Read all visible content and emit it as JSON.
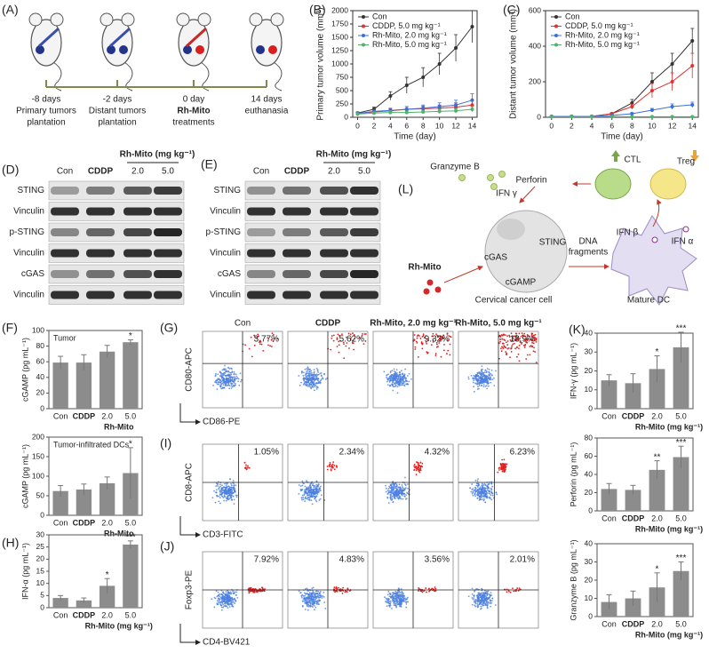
{
  "panel_labels": [
    "(A)",
    "(B)",
    "(C)",
    "(D)",
    "(E)",
    "(L)",
    "(F)",
    "(G)",
    "(K)",
    "(I)",
    "(H)",
    "(J)"
  ],
  "timeline": [
    {
      "time": "-8 days",
      "event": [
        "Primary tumors",
        "plantation"
      ]
    },
    {
      "time": "-2 days",
      "event": [
        "Distant tumors",
        "plantation"
      ]
    },
    {
      "time": "0 day",
      "event": [
        "Rh-Mito",
        "treatments"
      ]
    },
    {
      "time": "14 days",
      "event": [
        "euthanasia"
      ]
    }
  ],
  "blots": {
    "columns": [
      "Con",
      "CDDP",
      "2.0",
      "5.0"
    ],
    "dose_header": "Rh-Mito (mg kg⁻¹)",
    "rows": [
      "STING",
      "Vinculin",
      "p-STING",
      "Vinculin",
      "cGAS",
      "Vinculin"
    ]
  },
  "schematic": {
    "granzyme": "Granzyme B",
    "perforin": "Perforin",
    "ifn_gamma": "IFN γ",
    "ctl": "CTL",
    "treg": "Treg",
    "ifn_beta": "IFN β",
    "ifn_alpha": "IFN α",
    "drug": "Rh-Mito",
    "cgas": "cGAS",
    "sting": "STING",
    "cgamp": "cGAMP",
    "dna": [
      "DNA",
      "fragments"
    ],
    "cancer_cell": "Cervical cancer cell",
    "dc": "Mature DC"
  },
  "flow": {
    "columns": [
      "Con",
      "CDDP",
      "Rh-Mito, 2.0 mg kg⁻¹",
      "Rh-Mito, 5.0 mg kg⁻¹"
    ],
    "rows": [
      {
        "y_axis": "CD80-APC",
        "x_axis": "CD86-PE",
        "percents": [
          "3.77%",
          "5.62%",
          "9.32%",
          "18.9%"
        ]
      },
      {
        "y_axis": "CD8-APC",
        "x_axis": "CD3-FITC",
        "percents": [
          "1.05%",
          "2.34%",
          "4.32%",
          "6.23%"
        ]
      },
      {
        "y_axis": "Foxp3-PE",
        "x_axis": "CD4-BV421",
        "percents": [
          "7.92%",
          "4.83%",
          "3.56%",
          "2.01%"
        ]
      }
    ]
  },
  "chart_data": [
    {
      "type": "line",
      "ylabel": "Primary tumor volume (mm³)",
      "xlabel": "Time (day)",
      "x": [
        0,
        2,
        4,
        6,
        8,
        10,
        12,
        14
      ],
      "xlim": [
        -0.6,
        14.6
      ],
      "xticks": [
        0,
        2,
        4,
        6,
        8,
        10,
        12,
        14
      ],
      "ylim": [
        0,
        2000
      ],
      "yticks": [
        0,
        250,
        500,
        750,
        1000,
        1250,
        1500,
        1750,
        2000
      ],
      "legend": "upper left",
      "series": [
        {
          "name": "Con",
          "color": "#333333",
          "values": [
            80,
            150,
            400,
            600,
            750,
            1000,
            1300,
            1700
          ],
          "errors": [
            20,
            40,
            80,
            150,
            180,
            200,
            250,
            300
          ]
        },
        {
          "name": "CDDP, 5.0 mg kg⁻¹",
          "color": "#e03030",
          "values": [
            70,
            100,
            120,
            150,
            160,
            170,
            190,
            230
          ],
          "errors": [
            15,
            30,
            40,
            50,
            50,
            60,
            80,
            100
          ]
        },
        {
          "name": "Rh-Mito, 2.0 mg kg⁻¹",
          "color": "#3a6fd8",
          "values": [
            70,
            110,
            130,
            150,
            170,
            200,
            230,
            320
          ],
          "errors": [
            15,
            30,
            40,
            50,
            60,
            70,
            90,
            120
          ]
        },
        {
          "name": "Rh-Mito, 5.0 mg kg⁻¹",
          "color": "#4fb46a",
          "values": [
            60,
            80,
            90,
            90,
            100,
            110,
            120,
            150
          ],
          "errors": [
            10,
            20,
            30,
            30,
            30,
            40,
            40,
            50
          ]
        }
      ]
    },
    {
      "type": "line",
      "ylabel": "Distant tumor volume (mm³)",
      "xlabel": "Time (day)",
      "x": [
        0,
        2,
        4,
        6,
        8,
        10,
        12,
        14
      ],
      "xlim": [
        -0.6,
        14.6
      ],
      "xticks": [
        0,
        2,
        4,
        6,
        8,
        10,
        12,
        14
      ],
      "ylim": [
        0,
        600
      ],
      "yticks": [
        0,
        200,
        400,
        600
      ],
      "legend": "upper left",
      "series": [
        {
          "name": "Con",
          "color": "#333333",
          "values": [
            5,
            5,
            5,
            20,
            80,
            200,
            300,
            430
          ],
          "errors": [
            2,
            2,
            2,
            5,
            20,
            50,
            60,
            70
          ]
        },
        {
          "name": "CDDP, 5.0 mg kg⁻¹",
          "color": "#e03030",
          "values": [
            5,
            5,
            5,
            20,
            60,
            150,
            200,
            290
          ],
          "errors": [
            2,
            2,
            2,
            5,
            15,
            40,
            50,
            70
          ]
        },
        {
          "name": "Rh-Mito, 2.0 mg kg⁻¹",
          "color": "#3a6fd8",
          "values": [
            5,
            5,
            5,
            10,
            20,
            40,
            60,
            70
          ],
          "errors": [
            2,
            2,
            2,
            3,
            5,
            10,
            15,
            15
          ]
        },
        {
          "name": "Rh-Mito, 5.0 mg kg⁻¹",
          "color": "#4fb46a",
          "values": [
            3,
            3,
            3,
            3,
            3,
            3,
            3,
            3
          ],
          "errors": [
            1,
            1,
            1,
            1,
            1,
            1,
            1,
            1
          ]
        }
      ]
    },
    {
      "type": "bar",
      "annotation": "Tumor",
      "ylabel": "cGAMP (pg mL⁻¹)",
      "xlabel": "Rh-Mito",
      "categories": [
        "Con",
        "CDDP",
        "2.0",
        "5.0"
      ],
      "values": [
        59,
        59,
        73,
        85
      ],
      "errors": [
        8,
        10,
        8,
        3
      ],
      "significance": [
        null,
        null,
        null,
        "*"
      ],
      "ylim": [
        0,
        100
      ],
      "yticks": [
        0,
        20,
        40,
        60,
        80,
        100
      ],
      "color": "#8c8c8c"
    },
    {
      "type": "bar",
      "annotation": "Tumor-infiltrated DCs",
      "ylabel": "cGAMP (pg mL⁻¹)",
      "xlabel": "Rh-Mito",
      "categories": [
        "Con",
        "CDDP",
        "2.0",
        "5.0"
      ],
      "values": [
        62,
        66,
        82,
        108
      ],
      "errors": [
        14,
        14,
        16,
        65
      ],
      "significance": [
        null,
        null,
        null,
        "*"
      ],
      "ylim": [
        0,
        200
      ],
      "yticks": [
        0,
        50,
        100,
        150,
        200
      ],
      "color": "#8c8c8c"
    },
    {
      "type": "bar",
      "ylabel": "IFN-α (pg mL⁻¹)",
      "xlabel": "Rh-Mito (mg kg⁻¹)",
      "categories": [
        "Con",
        "CDDP",
        "2.0",
        "5.0"
      ],
      "values": [
        4,
        3,
        9,
        26
      ],
      "errors": [
        1,
        1,
        3,
        1.5
      ],
      "significance": [
        null,
        null,
        "*",
        "***"
      ],
      "ylim": [
        0,
        30
      ],
      "yticks": [
        0,
        5,
        10,
        15,
        20,
        25,
        30
      ],
      "color": "#8c8c8c"
    },
    {
      "type": "bar",
      "ylabel": "IFN-γ (pg mL⁻¹)",
      "xlabel": "Rh-Mito (mg kg⁻¹)",
      "categories": [
        "Con",
        "CDDP",
        "2.0",
        "5.0"
      ],
      "values": [
        15,
        13.5,
        21,
        32.5
      ],
      "errors": [
        3,
        5,
        7,
        8
      ],
      "significance": [
        null,
        null,
        "*",
        "***"
      ],
      "ylim": [
        0,
        40
      ],
      "yticks": [
        0,
        10,
        20,
        30,
        40
      ],
      "color": "#8c8c8c"
    },
    {
      "type": "bar",
      "ylabel": "Perforin (pg mL⁻¹)",
      "xlabel": "Rh-Mito (mg kg⁻¹)",
      "categories": [
        "Con",
        "CDDP",
        "2.0",
        "5.0"
      ],
      "values": [
        24,
        23,
        45,
        59
      ],
      "errors": [
        6,
        5,
        10,
        12
      ],
      "significance": [
        null,
        null,
        "**",
        "***"
      ],
      "ylim": [
        0,
        80
      ],
      "yticks": [
        0,
        20,
        40,
        60,
        80
      ],
      "color": "#8c8c8c"
    },
    {
      "type": "bar",
      "ylabel": "Granzyme B (pg mL⁻¹)",
      "xlabel": "Rh-Mito (mg kg⁻¹)",
      "categories": [
        "Con",
        "CDDP",
        "2.0",
        "5.0"
      ],
      "values": [
        8,
        10,
        16,
        25
      ],
      "errors": [
        4,
        4,
        8,
        5
      ],
      "significance": [
        null,
        null,
        "*",
        "***"
      ],
      "ylim": [
        0,
        40
      ],
      "yticks": [
        0,
        10,
        20,
        30,
        40
      ],
      "color": "#8c8c8c"
    }
  ]
}
